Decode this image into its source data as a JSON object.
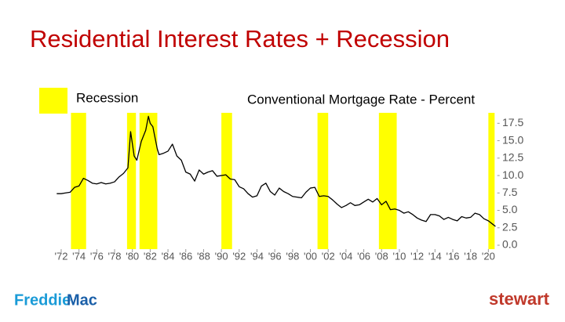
{
  "chart_data": {
    "type": "line",
    "title": "Residential Interest Rates + Recession",
    "recession": {
      "name": "Recession",
      "color": "#ffff00",
      "spans": [
        [
          1973.1,
          1974.8
        ],
        [
          1979.4,
          1980.4
        ],
        [
          1980.8,
          1982.8
        ],
        [
          1990.0,
          1991.2
        ],
        [
          2000.8,
          2002.0
        ],
        [
          2007.7,
          2009.7
        ],
        [
          2020.0,
          2020.7
        ]
      ]
    },
    "x": [
      1971.5,
      1972,
      1972.5,
      1973,
      1973.5,
      1974,
      1974.5,
      1975,
      1975.5,
      1976,
      1976.5,
      1977,
      1977.5,
      1978,
      1978.5,
      1979,
      1979.5,
      1979.8,
      1980.2,
      1980.5,
      1981,
      1981.5,
      1981.8,
      1982,
      1982.3,
      1982.8,
      1983,
      1983.5,
      1984,
      1984.5,
      1985,
      1985.5,
      1986,
      1986.5,
      1987,
      1987.5,
      1988,
      1988.5,
      1989,
      1989.5,
      1990,
      1990.5,
      1991,
      1991.5,
      1992,
      1992.5,
      1993,
      1993.5,
      1994,
      1994.5,
      1995,
      1995.5,
      1996,
      1996.5,
      1997,
      1997.5,
      1998,
      1998.5,
      1999,
      1999.5,
      2000,
      2000.5,
      2001,
      2001.5,
      2002,
      2002.5,
      2003,
      2003.5,
      2004,
      2004.5,
      2005,
      2005.5,
      2006,
      2006.5,
      2007,
      2007.5,
      2008,
      2008.5,
      2009,
      2009.5,
      2010,
      2010.5,
      2011,
      2011.5,
      2012,
      2012.5,
      2013,
      2013.5,
      2014,
      2014.5,
      2015,
      2015.5,
      2016,
      2016.5,
      2017,
      2017.5,
      2018,
      2018.5,
      2019,
      2019.5,
      2020,
      2020.5,
      2020.8
    ],
    "series": [
      {
        "name": "Conventional Mortgage Rate - Percent",
        "color": "#000000",
        "values": [
          7.4,
          7.4,
          7.5,
          7.6,
          8.3,
          8.5,
          9.6,
          9.3,
          8.9,
          8.8,
          9.0,
          8.8,
          8.9,
          9.1,
          9.8,
          10.3,
          11.1,
          16.3,
          12.8,
          12.2,
          14.9,
          16.5,
          18.5,
          17.5,
          17.0,
          13.8,
          13.0,
          13.2,
          13.5,
          14.5,
          12.8,
          12.2,
          10.5,
          10.2,
          9.2,
          10.8,
          10.2,
          10.5,
          10.7,
          9.9,
          10.0,
          10.1,
          9.5,
          9.4,
          8.4,
          8.1,
          7.4,
          6.9,
          7.1,
          8.5,
          8.9,
          7.7,
          7.2,
          8.2,
          7.7,
          7.4,
          7.0,
          6.9,
          6.8,
          7.6,
          8.2,
          8.3,
          7.0,
          7.1,
          7.0,
          6.5,
          5.9,
          5.4,
          5.7,
          6.1,
          5.7,
          5.8,
          6.2,
          6.6,
          6.2,
          6.7,
          5.8,
          6.3,
          5.1,
          5.2,
          5.0,
          4.6,
          4.8,
          4.4,
          3.9,
          3.6,
          3.4,
          4.4,
          4.4,
          4.2,
          3.7,
          4.0,
          3.7,
          3.5,
          4.1,
          3.9,
          4.0,
          4.6,
          4.4,
          3.8,
          3.5,
          3.0,
          2.7
        ]
      }
    ],
    "xlim": [
      1971.5,
      2021
    ],
    "xticks": [
      {
        "value": 1972,
        "label": "'72"
      },
      {
        "value": 1974,
        "label": "'74"
      },
      {
        "value": 1976,
        "label": "'76"
      },
      {
        "value": 1978,
        "label": "'78"
      },
      {
        "value": 1980,
        "label": "'80"
      },
      {
        "value": 1982,
        "label": "'82"
      },
      {
        "value": 1984,
        "label": "'84"
      },
      {
        "value": 1986,
        "label": "'86"
      },
      {
        "value": 1988,
        "label": "'88"
      },
      {
        "value": 1990,
        "label": "'90"
      },
      {
        "value": 1992,
        "label": "'92"
      },
      {
        "value": 1994,
        "label": "'94"
      },
      {
        "value": 1996,
        "label": "'96"
      },
      {
        "value": 1998,
        "label": "'98"
      },
      {
        "value": 2000,
        "label": "'00"
      },
      {
        "value": 2002,
        "label": "'02"
      },
      {
        "value": 2004,
        "label": "'04"
      },
      {
        "value": 2006,
        "label": "'06"
      },
      {
        "value": 2008,
        "label": "'08"
      },
      {
        "value": 2010,
        "label": "'10"
      },
      {
        "value": 2012,
        "label": "'12"
      },
      {
        "value": 2014,
        "label": "'14"
      },
      {
        "value": 2016,
        "label": "'16"
      },
      {
        "value": 2018,
        "label": "'18"
      },
      {
        "value": 2020,
        "label": "'20"
      }
    ],
    "ylim": [
      0,
      19
    ],
    "yticks": [
      {
        "value": 0,
        "label": "0.0"
      },
      2.5,
      {
        "value": 5,
        "label": "5.0"
      },
      7.5,
      {
        "value": 10,
        "label": "10.0"
      },
      12.5,
      {
        "value": 15,
        "label": "15.0"
      },
      17.5
    ]
  },
  "footer": {
    "left_logo": [
      "Freddie",
      "Mac"
    ],
    "right_logo": "stewart"
  }
}
